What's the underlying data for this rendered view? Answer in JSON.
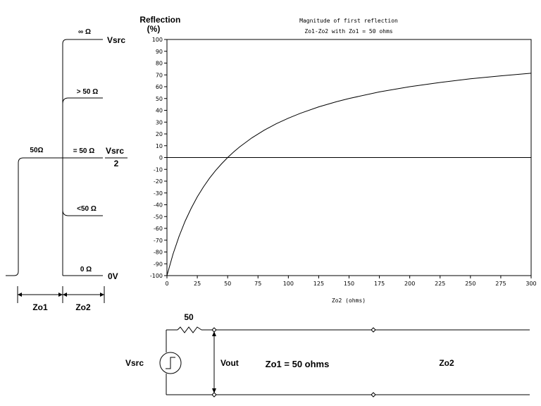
{
  "chart_data": {
    "type": "line",
    "title": "Magnitude of first reflection",
    "subtitle": "Zo1-Zo2 with Zo1 = 50 ohms",
    "xlabel": "Zo2 (ohms)",
    "ylabel": "Reflection\n(%)",
    "xlim": [
      0,
      300
    ],
    "ylim": [
      -100,
      100
    ],
    "x_ticks": [
      0,
      25,
      50,
      75,
      100,
      125,
      150,
      175,
      200,
      225,
      250,
      275,
      300
    ],
    "y_ticks": [
      -100,
      -90,
      -80,
      -70,
      -60,
      -50,
      -40,
      -30,
      -20,
      -10,
      0,
      10,
      20,
      30,
      40,
      50,
      60,
      70,
      80,
      90,
      100
    ],
    "grid": false,
    "series": [
      {
        "x": [
          0,
          5,
          10,
          15,
          20,
          25,
          30,
          35,
          40,
          45,
          50,
          55,
          60,
          70,
          80,
          90,
          100,
          110,
          125,
          140,
          150,
          175,
          200,
          225,
          250,
          275,
          300
        ],
        "y": [
          -100,
          -81.8,
          -66.7,
          -53.8,
          -42.9,
          -33.3,
          -25,
          -17.6,
          -11.1,
          -5.3,
          0,
          4.8,
          9.1,
          16.7,
          23.1,
          28.6,
          33.3,
          37.5,
          42.9,
          47.4,
          50,
          55.6,
          60,
          63.6,
          66.7,
          69.2,
          71.4
        ]
      }
    ]
  },
  "waveform": {
    "levels": {
      "open": "∞ Ω",
      "high": "> 50 Ω",
      "matched": "= 50 Ω",
      "low": "<50 Ω",
      "short": "0 Ω",
      "source": "50Ω"
    },
    "vsrc": "Vsrc",
    "half_numerator": "Vsrc",
    "half_denominator": "2",
    "zero": "0V",
    "seg1": "Zo1",
    "seg2": "Zo2"
  },
  "circuit": {
    "resistor": "50",
    "vsrc": "Vsrc",
    "vout": "Vout",
    "zo1": "Zo1 = 50 ohms",
    "zo2": "Zo2"
  }
}
